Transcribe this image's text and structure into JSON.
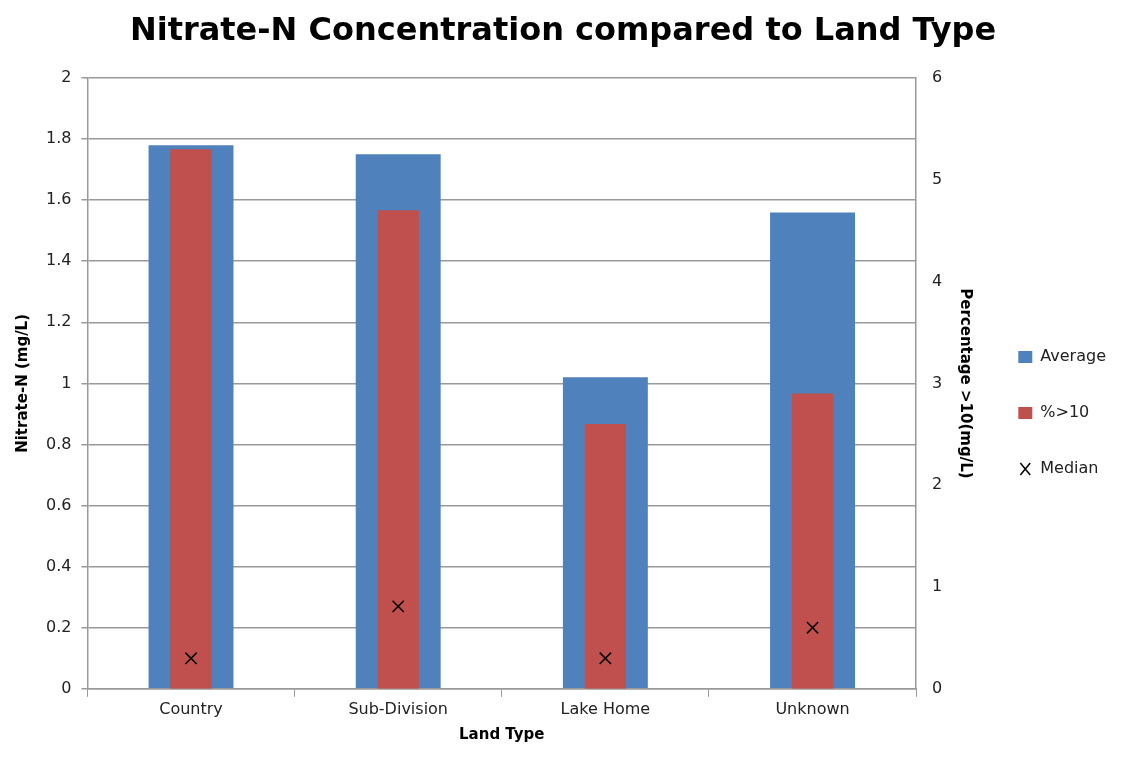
{
  "chart_data": {
    "type": "bar",
    "title": "Nitrate-N Concentration compared to Land Type",
    "xlabel": "Land Type",
    "ylabel": "Nitrate-N (mg/L)",
    "y2label": "Percentage >10(mg/L)",
    "categories": [
      "Country",
      "Sub-Division",
      "Lake Home",
      "Unknown"
    ],
    "series": [
      {
        "name": "Average",
        "color": "#4f81bd",
        "values": [
          1.78,
          1.75,
          1.02,
          1.56
        ]
      },
      {
        "name": "%>10",
        "axis": "y2",
        "color": "#c0504d",
        "values": [
          5.3,
          4.7,
          2.6,
          2.9
        ]
      },
      {
        "name": "Median",
        "type": "scatter",
        "marker": "cross",
        "color": "#000000",
        "values": [
          0.1,
          0.27,
          0.1,
          0.2
        ]
      }
    ],
    "ylim": [
      0,
      2
    ],
    "yticks": [
      0,
      0.2,
      0.4,
      0.6,
      0.8,
      1,
      1.2,
      1.4,
      1.6,
      1.8,
      2
    ],
    "y2lim": [
      0,
      6
    ],
    "y2ticks": [
      0,
      1,
      2,
      3,
      4,
      5,
      6
    ],
    "grid": "y",
    "legend": "right"
  }
}
